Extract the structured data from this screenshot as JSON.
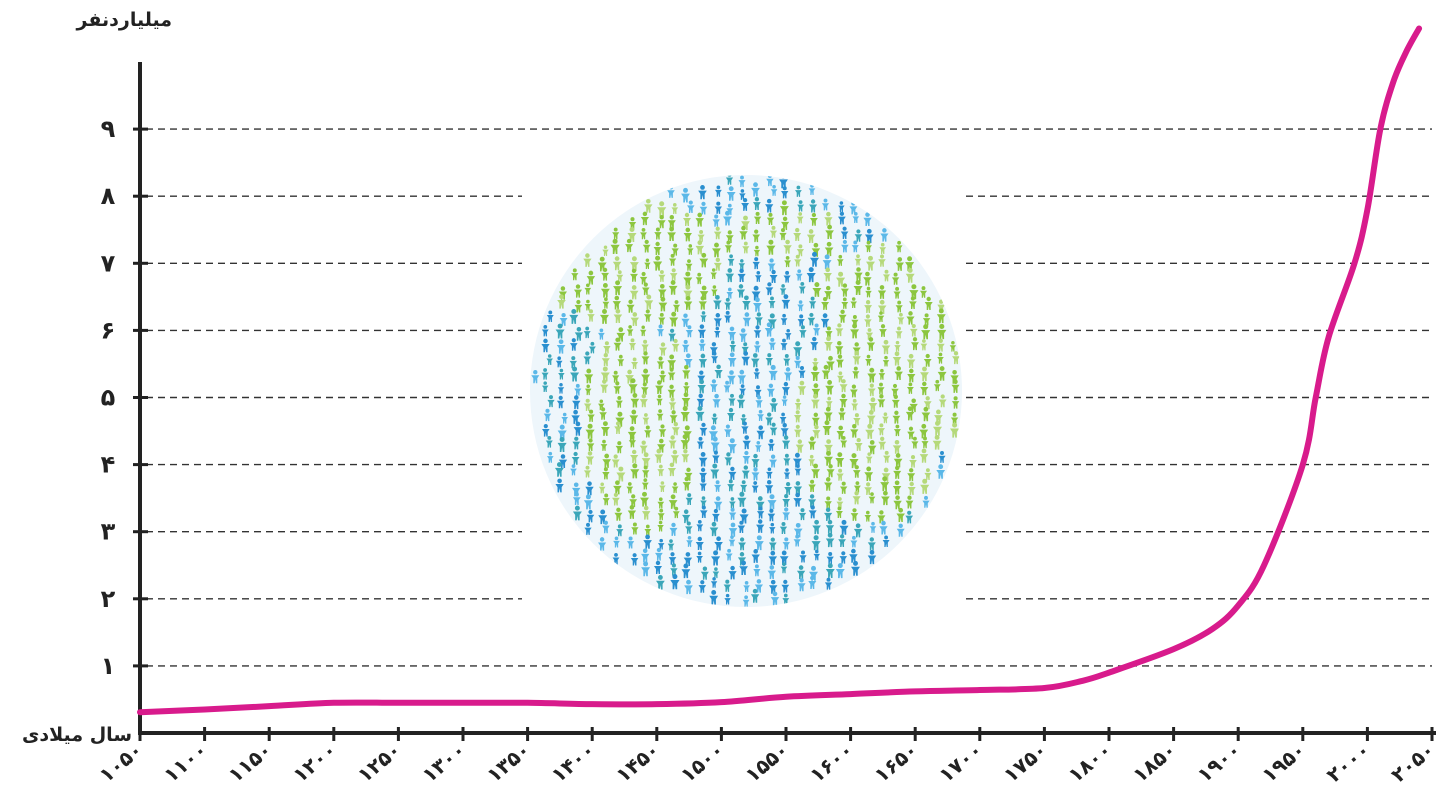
{
  "chart_data": {
    "type": "line",
    "ylabel": "میلیاردنفر",
    "xlabel": "سال میلادی",
    "x_ticks": [
      1050,
      1100,
      1150,
      1200,
      1250,
      1300,
      1350,
      1400,
      1450,
      1500,
      1550,
      1600,
      1650,
      1700,
      1750,
      1800,
      1850,
      1900,
      1950,
      2000,
      2050
    ],
    "x_tick_labels": [
      "۱۰۵۰",
      "۱۱۰۰",
      "۱۱۵۰",
      "۱۲۰۰",
      "۱۲۵۰",
      "۱۳۰۰",
      "۱۳۵۰",
      "۱۴۰۰",
      "۱۴۵۰",
      "۱۵۰۰",
      "۱۵۵۰",
      "۱۶۰۰",
      "۱۶۵۰",
      "۱۷۰۰",
      "۱۷۵۰",
      "۱۸۰۰",
      "۱۸۵۰",
      "۱۹۰۰",
      "۱۹۵۰",
      "۲۰۰۰",
      "۲۰۵۰"
    ],
    "y_ticks": [
      1,
      2,
      3,
      4,
      5,
      6,
      7,
      8,
      9
    ],
    "y_tick_labels": [
      "۱",
      "۲",
      "۳",
      "۴",
      "۵",
      "۶",
      "۷",
      "۸",
      "۹"
    ],
    "xlim": [
      1050,
      2050
    ],
    "ylim": [
      0,
      10
    ],
    "grid": "horizontal-dashed",
    "series": [
      {
        "color": "#d81b8c",
        "x": [
          1050,
          1100,
          1150,
          1200,
          1250,
          1300,
          1350,
          1400,
          1450,
          1500,
          1550,
          1600,
          1650,
          1700,
          1750,
          1780,
          1800,
          1850,
          1880,
          1900,
          1920,
          1950,
          1960,
          1970,
          1990,
          2000,
          2010,
          2020,
          2030,
          2040
        ],
        "y": [
          0.31,
          0.35,
          0.4,
          0.45,
          0.45,
          0.45,
          0.45,
          0.43,
          0.43,
          0.46,
          0.54,
          0.58,
          0.62,
          0.64,
          0.67,
          0.78,
          0.9,
          1.25,
          1.55,
          1.9,
          2.5,
          4.0,
          5.0,
          5.9,
          7.0,
          7.8,
          9.0,
          9.7,
          10.15,
          10.5
        ]
      }
    ]
  },
  "decoration": {
    "globe_icon": "globe-made-of-people-icon",
    "colors": {
      "blue": "#2a8fcf",
      "light_blue": "#5bb8e8",
      "green": "#8cc63f",
      "light_green": "#b5d97a",
      "teal": "#3aa6b9"
    }
  }
}
